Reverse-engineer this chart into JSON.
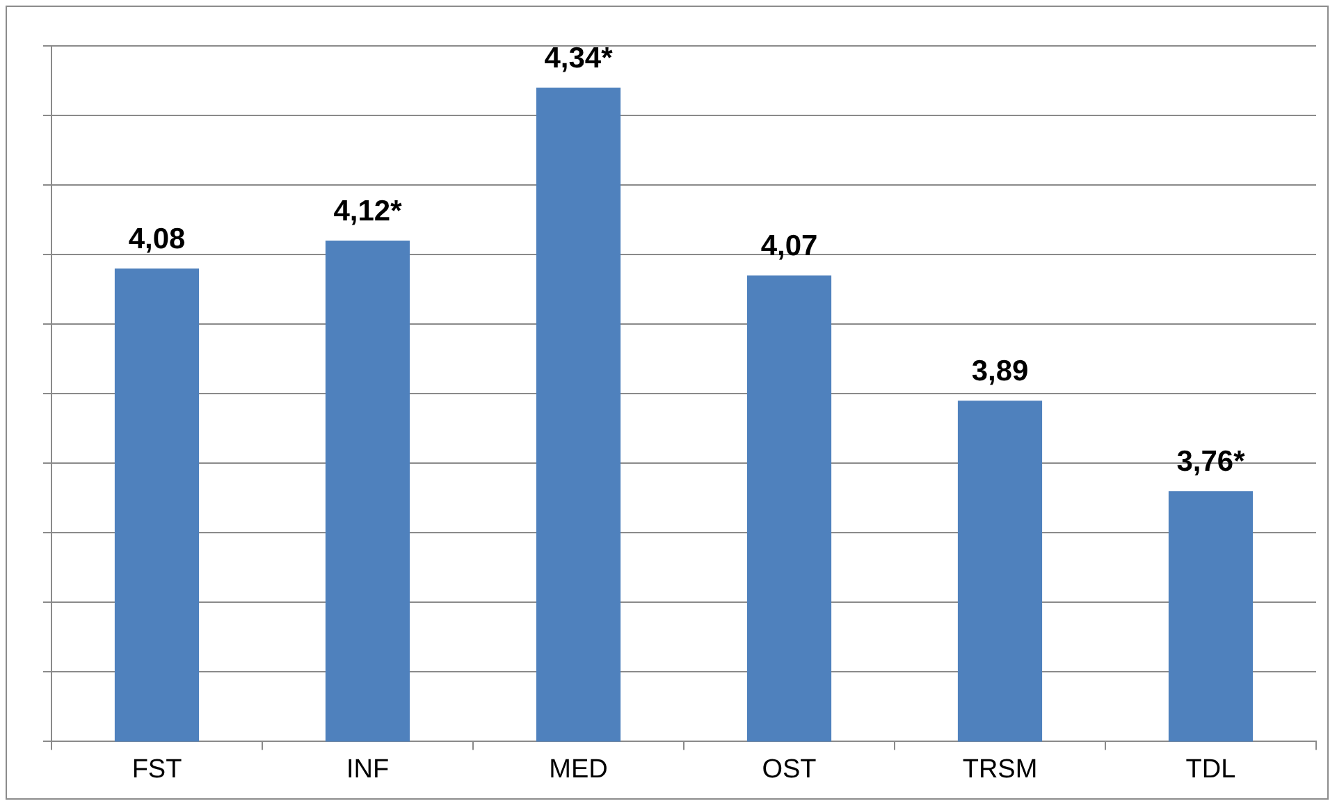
{
  "chart_data": {
    "type": "bar",
    "categories": [
      "FST",
      "INF",
      "MED",
      "OST",
      "TRSM",
      "TDL"
    ],
    "values": [
      4.08,
      4.12,
      4.34,
      4.07,
      3.89,
      3.76
    ],
    "value_labels": [
      "4,08",
      "4,12*",
      "4,34*",
      "4,07",
      "3,89",
      "3,76*"
    ],
    "color": "#4f81bd",
    "ylim": [
      3.4,
      4.4
    ],
    "yticks": [
      {
        "value": 3.4,
        "label": null
      },
      {
        "value": 3.5,
        "label": null
      },
      {
        "value": 3.6,
        "label": null
      },
      {
        "value": 3.7,
        "label": null
      },
      {
        "value": 3.8,
        "label": null
      },
      {
        "value": 3.9,
        "label": null
      },
      {
        "value": 4.0,
        "label": null
      },
      {
        "value": 4.1,
        "label": null
      },
      {
        "value": 4.2,
        "label": null
      },
      {
        "value": 4.3,
        "label": null
      },
      {
        "value": 4.4,
        "label": null
      }
    ],
    "grid": "y",
    "tick_labels": "x",
    "legend": false
  }
}
